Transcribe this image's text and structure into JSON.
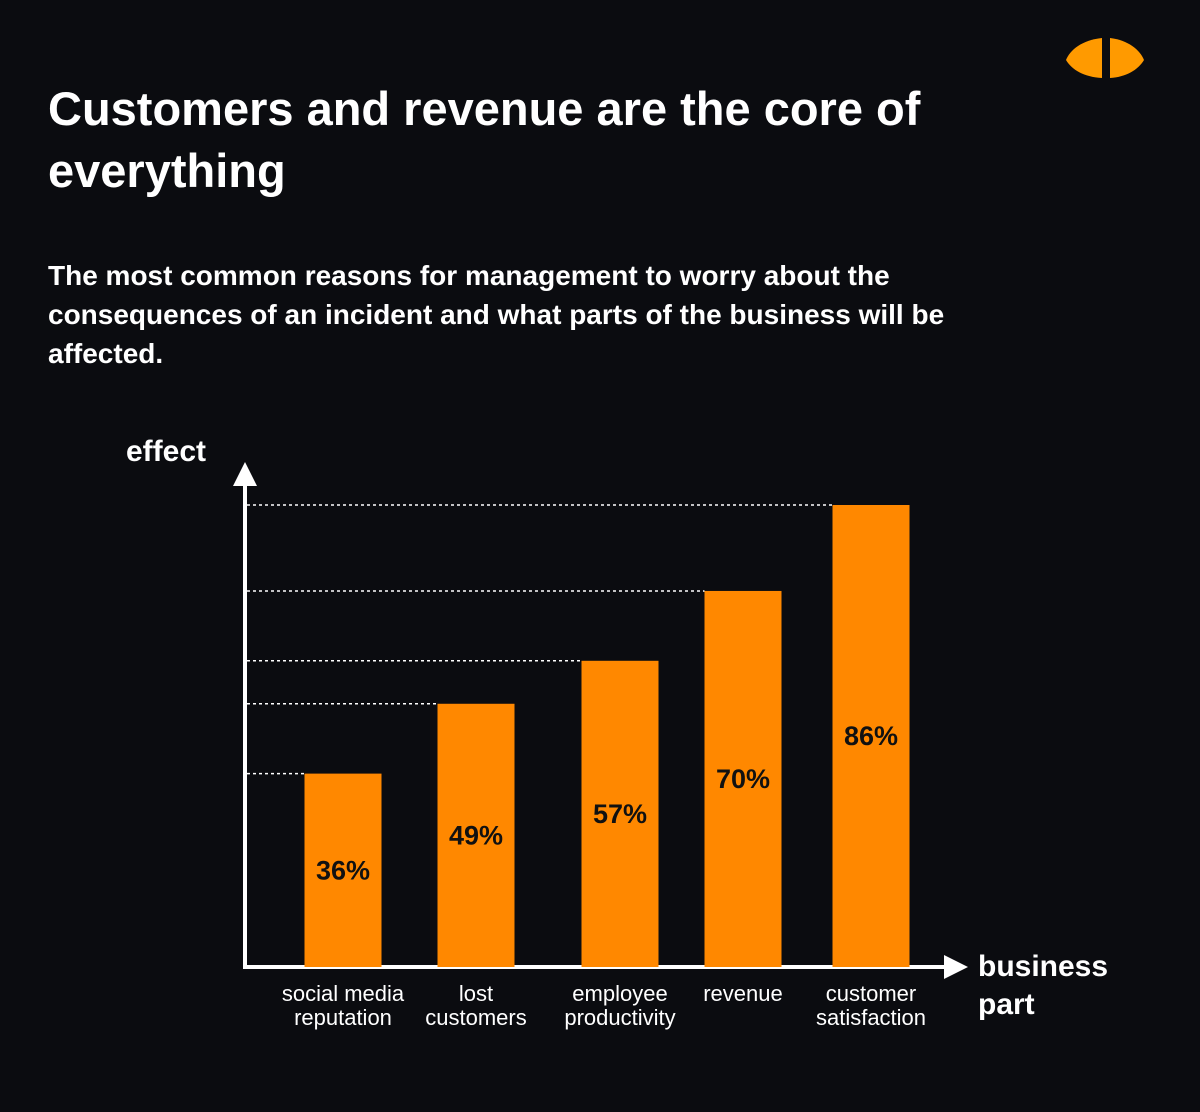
{
  "chart_data": {
    "type": "bar",
    "title": "Customers and revenue are the core of everything",
    "subtitle": "The most common reasons for management to worry about the consequences of an incident and what parts of the business will be affected.",
    "y_label": "effect",
    "x_label": "business part",
    "categories": [
      "social media reputation",
      "lost customers",
      "employee productivity",
      "revenue",
      "customer satisfaction"
    ],
    "values": [
      36,
      49,
      57,
      70,
      86
    ],
    "value_labels": [
      "36%",
      "49%",
      "57%",
      "70%",
      "86%"
    ],
    "color": "#ff8800"
  }
}
